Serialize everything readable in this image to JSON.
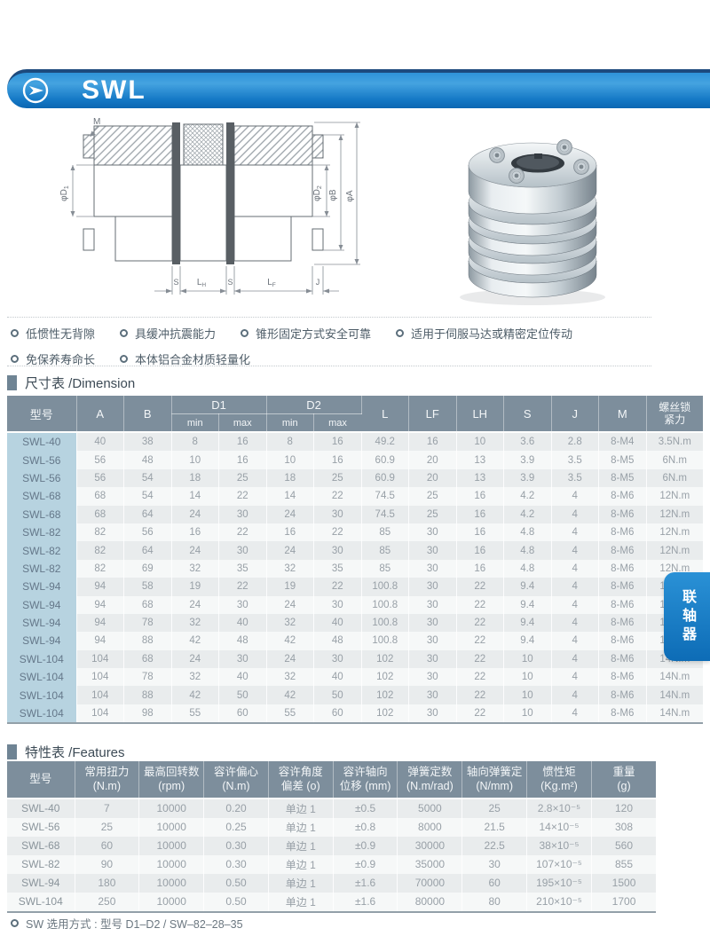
{
  "header": {
    "title": "SWL",
    "icon": "arrow-circle"
  },
  "side_tab": {
    "label": "联轴器"
  },
  "bullets": {
    "rows": [
      [
        "低惯性无背隙",
        "具缓冲抗震能力",
        "锥形固定方式安全可靠",
        "适用于伺服马达或精密定位传动"
      ],
      [
        "免保养寿命长",
        "本体铝合金材质轻量化"
      ]
    ]
  },
  "drawing": {
    "labels": {
      "m": "M",
      "phi_d": "φD",
      "sub1": "1",
      "sub2": "2",
      "phi_b": "φB",
      "phi_a": "φA",
      "s": "S",
      "l": "L",
      "h_sub": "H",
      "f_sub": "F",
      "j": "J"
    }
  },
  "dim_table": {
    "title": "尺寸表 /Dimension",
    "headers": {
      "model": "型号",
      "a": "A",
      "b": "B",
      "d1": "D1",
      "d2": "D2",
      "min": "min",
      "max": "max",
      "l": "L",
      "lf": "LF",
      "lh": "LH",
      "s": "S",
      "j": "J",
      "m": "M",
      "screw_l1": "螺丝锁",
      "screw_l2": "紧力"
    },
    "rows": [
      [
        "SWL-40",
        "40",
        "38",
        "8",
        "16",
        "8",
        "16",
        "49.2",
        "16",
        "10",
        "3.6",
        "2.8",
        "8-M4",
        "3.5N.m"
      ],
      [
        "SWL-56",
        "56",
        "48",
        "10",
        "16",
        "10",
        "16",
        "60.9",
        "20",
        "13",
        "3.9",
        "3.5",
        "8-M5",
        "6N.m"
      ],
      [
        "SWL-56",
        "56",
        "54",
        "18",
        "25",
        "18",
        "25",
        "60.9",
        "20",
        "13",
        "3.9",
        "3.5",
        "8-M5",
        "6N.m"
      ],
      [
        "SWL-68",
        "68",
        "54",
        "14",
        "22",
        "14",
        "22",
        "74.5",
        "25",
        "16",
        "4.2",
        "4",
        "8-M6",
        "12N.m"
      ],
      [
        "SWL-68",
        "68",
        "64",
        "24",
        "30",
        "24",
        "30",
        "74.5",
        "25",
        "16",
        "4.2",
        "4",
        "8-M6",
        "12N.m"
      ],
      [
        "SWL-82",
        "82",
        "56",
        "16",
        "22",
        "16",
        "22",
        "85",
        "30",
        "16",
        "4.8",
        "4",
        "8-M6",
        "12N.m"
      ],
      [
        "SWL-82",
        "82",
        "64",
        "24",
        "30",
        "24",
        "30",
        "85",
        "30",
        "16",
        "4.8",
        "4",
        "8-M6",
        "12N.m"
      ],
      [
        "SWL-82",
        "82",
        "69",
        "32",
        "35",
        "32",
        "35",
        "85",
        "30",
        "16",
        "4.8",
        "4",
        "8-M6",
        "12N.m"
      ],
      [
        "SWL-94",
        "94",
        "58",
        "19",
        "22",
        "19",
        "22",
        "100.8",
        "30",
        "22",
        "9.4",
        "4",
        "8-M6",
        "14N.m"
      ],
      [
        "SWL-94",
        "94",
        "68",
        "24",
        "30",
        "24",
        "30",
        "100.8",
        "30",
        "22",
        "9.4",
        "4",
        "8-M6",
        "14N.m"
      ],
      [
        "SWL-94",
        "94",
        "78",
        "32",
        "40",
        "32",
        "40",
        "100.8",
        "30",
        "22",
        "9.4",
        "4",
        "8-M6",
        "14N.m"
      ],
      [
        "SWL-94",
        "94",
        "88",
        "42",
        "48",
        "42",
        "48",
        "100.8",
        "30",
        "22",
        "9.4",
        "4",
        "8-M6",
        "14N.m"
      ],
      [
        "SWL-104",
        "104",
        "68",
        "24",
        "30",
        "24",
        "30",
        "102",
        "30",
        "22",
        "10",
        "4",
        "8-M6",
        "14N.m"
      ],
      [
        "SWL-104",
        "104",
        "78",
        "32",
        "40",
        "32",
        "40",
        "102",
        "30",
        "22",
        "10",
        "4",
        "8-M6",
        "14N.m"
      ],
      [
        "SWL-104",
        "104",
        "88",
        "42",
        "50",
        "42",
        "50",
        "102",
        "30",
        "22",
        "10",
        "4",
        "8-M6",
        "14N.m"
      ],
      [
        "SWL-104",
        "104",
        "98",
        "55",
        "60",
        "55",
        "60",
        "102",
        "30",
        "22",
        "10",
        "4",
        "8-M6",
        "14N.m"
      ]
    ]
  },
  "feat_table": {
    "title": "特性表 /Features",
    "headers": [
      {
        "l1": "型号",
        "l2": ""
      },
      {
        "l1": "常用扭力",
        "l2": "(N.m)"
      },
      {
        "l1": "最高回转数",
        "l2": "(rpm)"
      },
      {
        "l1": "容许偏心",
        "l2": "(N.m)"
      },
      {
        "l1": "容许角度",
        "l2": "偏差 (o)"
      },
      {
        "l1": "容许轴向",
        "l2": "位移 (mm)"
      },
      {
        "l1": "弹簧定数",
        "l2": "(N.m/rad)"
      },
      {
        "l1": "轴向弹簧定",
        "l2": "(N/mm)"
      },
      {
        "l1": "惯性矩",
        "l2": "(Kg.m²)"
      },
      {
        "l1": "重量",
        "l2": "(g)"
      }
    ],
    "rows": [
      [
        "SWL-40",
        "7",
        "10000",
        "0.20",
        "单边 1",
        "±0.5",
        "5000",
        "25",
        "2.8×10⁻⁵",
        "120"
      ],
      [
        "SWL-56",
        "25",
        "10000",
        "0.25",
        "单边 1",
        "±0.8",
        "8000",
        "21.5",
        "14×10⁻⁵",
        "308"
      ],
      [
        "SWL-68",
        "60",
        "10000",
        "0.30",
        "单边 1",
        "±0.9",
        "30000",
        "22.5",
        "38×10⁻⁵",
        "560"
      ],
      [
        "SWL-82",
        "90",
        "10000",
        "0.30",
        "单边 1",
        "±0.9",
        "35000",
        "30",
        "107×10⁻⁵",
        "855"
      ],
      [
        "SWL-94",
        "180",
        "10000",
        "0.50",
        "单边 1",
        "±1.6",
        "70000",
        "60",
        "195×10⁻⁵",
        "1500"
      ],
      [
        "SWL-104",
        "250",
        "10000",
        "0.50",
        "单边 1",
        "±1.6",
        "80000",
        "80",
        "210×10⁻⁵",
        "1700"
      ]
    ]
  },
  "note": {
    "text": "SW 选用方式 : 型号 D1–D2 / SW–82–28–35"
  }
}
